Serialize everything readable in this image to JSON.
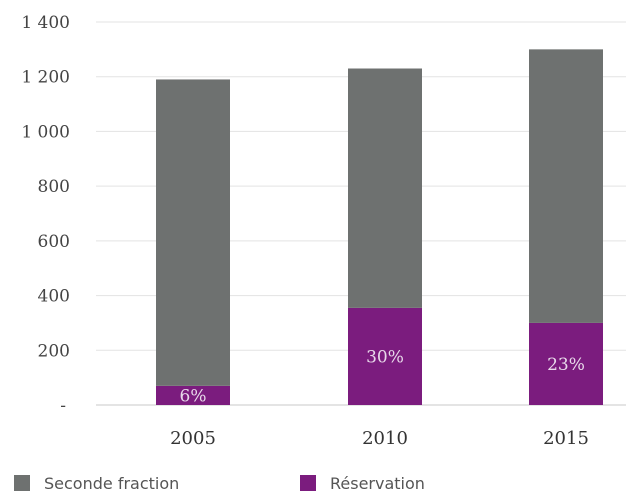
{
  "chart_data": {
    "type": "bar",
    "stacked": true,
    "categories": [
      "2005",
      "2010",
      "2015"
    ],
    "series": [
      {
        "name": "Réservation",
        "values": [
          70,
          355,
          300
        ],
        "color": "#7b1c7e",
        "labels": [
          "6%",
          "30%",
          "23%"
        ]
      },
      {
        "name": "Seconde fraction",
        "values": [
          1120,
          875,
          1000
        ],
        "color": "#6e7170"
      }
    ],
    "ylim": [
      0,
      1400
    ],
    "yticks": [
      {
        "value": 0,
        "label": "-"
      },
      {
        "value": 200,
        "label": "200"
      },
      {
        "value": 400,
        "label": "400"
      },
      {
        "value": 600,
        "label": "600"
      },
      {
        "value": 800,
        "label": "800"
      },
      {
        "value": 1000,
        "label": "1 000"
      },
      {
        "value": 1200,
        "label": "1 200"
      },
      {
        "value": 1400,
        "label": "1 400"
      }
    ],
    "grid": true,
    "legend_position": "bottom",
    "title": "",
    "xlabel": "",
    "ylabel": ""
  },
  "legend": {
    "items": [
      {
        "label": "Seconde fraction",
        "color": "#6e7170"
      },
      {
        "label": "Réservation",
        "color": "#7b1c7e"
      }
    ]
  }
}
